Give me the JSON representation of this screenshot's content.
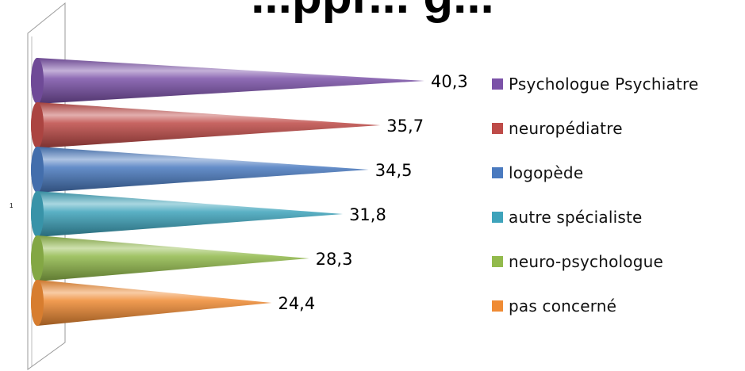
{
  "chart_data": {
    "type": "bar",
    "orientation": "horizontal",
    "style": "3d-cone",
    "title": "...ppr... g...",
    "category_axis_label": "1",
    "series": [
      {
        "name": "Psychologue Psychiatre",
        "value": 40.3,
        "value_label": "40,3",
        "color": "#7b52a8"
      },
      {
        "name": "neuropédiatre",
        "value": 35.7,
        "value_label": "35,7",
        "color": "#be4b48"
      },
      {
        "name": "logopède",
        "value": 34.5,
        "value_label": "34,5",
        "color": "#4a7abf"
      },
      {
        "name": "autre spécialiste",
        "value": 31.8,
        "value_label": "31,8",
        "color": "#3ea3bb"
      },
      {
        "name": "neuro-psychologue",
        "value": 28.3,
        "value_label": "28,3",
        "color": "#92ba4c"
      },
      {
        "name": "pas concerné",
        "value": 24.4,
        "value_label": "24,4",
        "color": "#ef8b34"
      }
    ],
    "xlim": [
      0,
      45
    ],
    "grid": false,
    "legend_position": "right"
  }
}
